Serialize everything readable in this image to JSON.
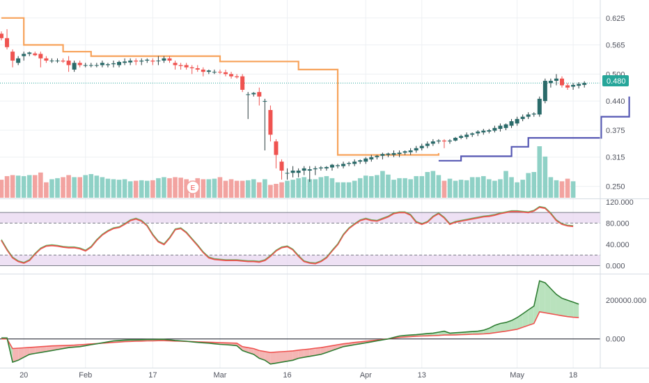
{
  "colors": {
    "up": "#26a69a",
    "up_body": "#2a6b6a",
    "down": "#ef5350",
    "vol_up": "#8fd1c6",
    "vol_down": "#f2a3a0",
    "stop_bear": "#f7a25a",
    "stop_bull": "#5557b3",
    "osc_band": "#e7d4ef",
    "pvt_green": "#4caf50",
    "pvt_fill_up": "#b9e2bd",
    "pvt_fill_down": "#f4b6b4",
    "last_price": "#26a69a",
    "grid": "#edf0f3",
    "axis_line": "#d6dce3"
  },
  "chart_data": [
    {
      "type": "candlestick",
      "title": "",
      "price_axis_ticks": [
        "0.625",
        "0.565",
        "0.500",
        "0.440",
        "0.375",
        "0.315",
        "0.250"
      ],
      "price_range": [
        0.223,
        0.665
      ],
      "last_price_label": "0.480",
      "earnings_marker": "E",
      "x_tick_labels": [
        {
          "label": "20",
          "bar": 4
        },
        {
          "label": "Feb",
          "bar": 15
        },
        {
          "label": "17",
          "bar": 27
        },
        {
          "label": "Mar",
          "bar": 39
        },
        {
          "label": "16",
          "bar": 51
        },
        {
          "label": "Apr",
          "bar": 65
        },
        {
          "label": "13",
          "bar": 75
        },
        {
          "label": "May",
          "bar": 92
        },
        {
          "label": "18",
          "bar": 102
        }
      ],
      "candles": [
        [
          0.59,
          0.595,
          0.575,
          0.58
        ],
        [
          0.58,
          0.6,
          0.555,
          0.56
        ],
        [
          0.55,
          0.555,
          0.515,
          0.53
        ],
        [
          0.525,
          0.54,
          0.52,
          0.535
        ],
        [
          0.54,
          0.55,
          0.53,
          0.545
        ],
        [
          0.545,
          0.55,
          0.54,
          0.548
        ],
        [
          0.546,
          0.55,
          0.54,
          0.542
        ],
        [
          0.545,
          0.55,
          0.515,
          0.535
        ],
        [
          0.535,
          0.54,
          0.525,
          0.53
        ],
        [
          0.53,
          0.535,
          0.525,
          0.53
        ],
        [
          0.53,
          0.535,
          0.525,
          0.53
        ],
        [
          0.53,
          0.535,
          0.525,
          0.528
        ],
        [
          0.53,
          0.54,
          0.505,
          0.52
        ],
        [
          0.51,
          0.53,
          0.505,
          0.525
        ],
        [
          0.525,
          0.53,
          0.515,
          0.52
        ],
        [
          0.52,
          0.525,
          0.515,
          0.52
        ],
        [
          0.52,
          0.525,
          0.515,
          0.52
        ],
        [
          0.52,
          0.525,
          0.515,
          0.52
        ],
        [
          0.52,
          0.53,
          0.515,
          0.525
        ],
        [
          0.52,
          0.525,
          0.515,
          0.522
        ],
        [
          0.522,
          0.53,
          0.515,
          0.524
        ],
        [
          0.52,
          0.53,
          0.515,
          0.527
        ],
        [
          0.525,
          0.535,
          0.52,
          0.528
        ],
        [
          0.526,
          0.535,
          0.52,
          0.53
        ],
        [
          0.53,
          0.535,
          0.52,
          0.528
        ],
        [
          0.528,
          0.535,
          0.52,
          0.53
        ],
        [
          0.53,
          0.535,
          0.525,
          0.532
        ],
        [
          0.53,
          0.535,
          0.52,
          0.528
        ],
        [
          0.53,
          0.54,
          0.52,
          0.53
        ],
        [
          0.53,
          0.54,
          0.525,
          0.535
        ],
        [
          0.535,
          0.54,
          0.525,
          0.53
        ],
        [
          0.525,
          0.53,
          0.51,
          0.52
        ],
        [
          0.52,
          0.525,
          0.51,
          0.518
        ],
        [
          0.52,
          0.525,
          0.51,
          0.515
        ],
        [
          0.515,
          0.52,
          0.5,
          0.513
        ],
        [
          0.513,
          0.52,
          0.505,
          0.51
        ],
        [
          0.51,
          0.515,
          0.495,
          0.505
        ],
        [
          0.505,
          0.51,
          0.5,
          0.508
        ],
        [
          0.505,
          0.51,
          0.5,
          0.505
        ],
        [
          0.505,
          0.51,
          0.5,
          0.504
        ],
        [
          0.504,
          0.51,
          0.495,
          0.5
        ],
        [
          0.5,
          0.505,
          0.49,
          0.495
        ],
        [
          0.495,
          0.5,
          0.49,
          0.493
        ],
        [
          0.495,
          0.5,
          0.46,
          0.465
        ],
        [
          0.455,
          0.46,
          0.4,
          0.455
        ],
        [
          0.455,
          0.46,
          0.45,
          0.458
        ],
        [
          0.46,
          0.47,
          0.43,
          0.45
        ],
        [
          0.44,
          0.445,
          0.33,
          0.44
        ],
        [
          0.42,
          0.43,
          0.35,
          0.365
        ],
        [
          0.35,
          0.355,
          0.29,
          0.32
        ],
        [
          0.305,
          0.31,
          0.265,
          0.285
        ],
        [
          0.28,
          0.29,
          0.265,
          0.28
        ],
        [
          0.28,
          0.295,
          0.27,
          0.285
        ],
        [
          0.28,
          0.29,
          0.27,
          0.285
        ],
        [
          0.285,
          0.295,
          0.275,
          0.29
        ],
        [
          0.285,
          0.295,
          0.26,
          0.288
        ],
        [
          0.288,
          0.295,
          0.275,
          0.29
        ],
        [
          0.29,
          0.295,
          0.285,
          0.292
        ],
        [
          0.29,
          0.295,
          0.285,
          0.293
        ],
        [
          0.292,
          0.3,
          0.285,
          0.298
        ],
        [
          0.295,
          0.3,
          0.29,
          0.297
        ],
        [
          0.295,
          0.305,
          0.29,
          0.3
        ],
        [
          0.3,
          0.305,
          0.295,
          0.302
        ],
        [
          0.3,
          0.31,
          0.295,
          0.305
        ],
        [
          0.305,
          0.31,
          0.3,
          0.308
        ],
        [
          0.305,
          0.315,
          0.3,
          0.312
        ],
        [
          0.31,
          0.32,
          0.305,
          0.315
        ],
        [
          0.315,
          0.32,
          0.31,
          0.318
        ],
        [
          0.318,
          0.325,
          0.31,
          0.322
        ],
        [
          0.32,
          0.325,
          0.315,
          0.323
        ],
        [
          0.32,
          0.33,
          0.315,
          0.324
        ],
        [
          0.322,
          0.33,
          0.315,
          0.325
        ],
        [
          0.325,
          0.33,
          0.32,
          0.328
        ],
        [
          0.326,
          0.335,
          0.32,
          0.33
        ],
        [
          0.33,
          0.34,
          0.325,
          0.335
        ],
        [
          0.335,
          0.345,
          0.33,
          0.34
        ],
        [
          0.34,
          0.35,
          0.335,
          0.345
        ],
        [
          0.345,
          0.355,
          0.34,
          0.35
        ],
        [
          0.35,
          0.355,
          0.345,
          0.352
        ],
        [
          0.352,
          0.355,
          0.335,
          0.35
        ],
        [
          0.35,
          0.355,
          0.345,
          0.352
        ],
        [
          0.352,
          0.36,
          0.35,
          0.358
        ],
        [
          0.358,
          0.365,
          0.355,
          0.362
        ],
        [
          0.36,
          0.37,
          0.355,
          0.365
        ],
        [
          0.365,
          0.37,
          0.36,
          0.368
        ],
        [
          0.368,
          0.375,
          0.362,
          0.372
        ],
        [
          0.37,
          0.378,
          0.365,
          0.374
        ],
        [
          0.372,
          0.378,
          0.368,
          0.375
        ],
        [
          0.374,
          0.385,
          0.37,
          0.38
        ],
        [
          0.378,
          0.39,
          0.372,
          0.385
        ],
        [
          0.38,
          0.39,
          0.375,
          0.388
        ],
        [
          0.385,
          0.4,
          0.38,
          0.395
        ],
        [
          0.39,
          0.405,
          0.385,
          0.4
        ],
        [
          0.4,
          0.41,
          0.395,
          0.405
        ],
        [
          0.405,
          0.415,
          0.4,
          0.41
        ],
        [
          0.41,
          0.415,
          0.405,
          0.412
        ],
        [
          0.41,
          0.45,
          0.405,
          0.445
        ],
        [
          0.44,
          0.49,
          0.435,
          0.485
        ],
        [
          0.48,
          0.49,
          0.47,
          0.485
        ],
        [
          0.485,
          0.5,
          0.475,
          0.49
        ],
        [
          0.49,
          0.495,
          0.47,
          0.475
        ],
        [
          0.475,
          0.48,
          0.465,
          0.47
        ],
        [
          0.472,
          0.48,
          0.465,
          0.476
        ],
        [
          0.474,
          0.482,
          0.468,
          0.478
        ],
        [
          0.476,
          0.484,
          0.47,
          0.48
        ]
      ],
      "volume": [
        0.35,
        0.42,
        0.44,
        0.43,
        0.42,
        0.44,
        0.44,
        0.49,
        0.3,
        0.36,
        0.38,
        0.4,
        0.44,
        0.4,
        0.4,
        0.44,
        0.46,
        0.43,
        0.4,
        0.37,
        0.36,
        0.35,
        0.36,
        0.32,
        0.33,
        0.34,
        0.33,
        0.34,
        0.38,
        0.4,
        0.38,
        0.4,
        0.39,
        0.36,
        0.33,
        0.38,
        0.36,
        0.36,
        0.37,
        0.4,
        0.33,
        0.36,
        0.33,
        0.33,
        0.34,
        0.36,
        0.3,
        0.36,
        0.25,
        0.27,
        0.3,
        0.33,
        0.35,
        0.38,
        0.4,
        0.36,
        0.36,
        0.4,
        0.42,
        0.38,
        0.3,
        0.3,
        0.3,
        0.33,
        0.38,
        0.43,
        0.42,
        0.44,
        0.52,
        0.45,
        0.35,
        0.38,
        0.38,
        0.36,
        0.42,
        0.42,
        0.5,
        0.52,
        0.44,
        0.33,
        0.37,
        0.33,
        0.35,
        0.34,
        0.4,
        0.4,
        0.42,
        0.36,
        0.33,
        0.36,
        0.52,
        0.4,
        0.3,
        0.35,
        0.48,
        0.5,
        1.0,
        0.8,
        0.4,
        0.34,
        0.32,
        0.37,
        0.32
      ],
      "stop_bear": [
        [
          0,
          0.625
        ],
        [
          4,
          0.625
        ],
        [
          4,
          0.565
        ],
        [
          11,
          0.565
        ],
        [
          11,
          0.55
        ],
        [
          16,
          0.55
        ],
        [
          16,
          0.54
        ],
        [
          39,
          0.54
        ],
        [
          39,
          0.528
        ],
        [
          53,
          0.528
        ],
        [
          53,
          0.51
        ],
        [
          60,
          0.51
        ],
        [
          60,
          0.32
        ],
        [
          78,
          0.32
        ],
        [
          78,
          0.324
        ]
      ],
      "stop_bull": [
        [
          78,
          0.307
        ],
        [
          82,
          0.307
        ],
        [
          82,
          0.317
        ],
        [
          91,
          0.317
        ],
        [
          91,
          0.338
        ],
        [
          94,
          0.338
        ],
        [
          94,
          0.358
        ],
        [
          107,
          0.358
        ],
        [
          107,
          0.405
        ],
        [
          112,
          0.405
        ],
        [
          112,
          0.45
        ]
      ]
    },
    {
      "type": "line",
      "title": "",
      "axis_ticks": [
        "120.000",
        "80.000",
        "40.000",
        "0.000"
      ],
      "range": [
        -15,
        125
      ],
      "band_upper": [
        80,
        100
      ],
      "band_lower": [
        0,
        20
      ],
      "series": [
        {
          "values": [
            48,
            30,
            15,
            8,
            5,
            10,
            22,
            32,
            37,
            38,
            37,
            35,
            34,
            34,
            32,
            28,
            35,
            48,
            58,
            65,
            70,
            72,
            78,
            85,
            88,
            84,
            75,
            58,
            45,
            40,
            52,
            68,
            70,
            62,
            50,
            38,
            25,
            15,
            12,
            11,
            10,
            10,
            10,
            9,
            8,
            8,
            7,
            10,
            18,
            28,
            34,
            36,
            30,
            18,
            8,
            5,
            4,
            8,
            15,
            28,
            40,
            58,
            70,
            78,
            85,
            88,
            85,
            84,
            88,
            92,
            98,
            100,
            100,
            95,
            82,
            78,
            82,
            92,
            98,
            90,
            78,
            82,
            84,
            86,
            88,
            90,
            92,
            93,
            95,
            98,
            100,
            102,
            102,
            101,
            100,
            103,
            110,
            108,
            98,
            85,
            78,
            75,
            74
          ]
        }
      ]
    },
    {
      "type": "area",
      "title": "",
      "axis_ticks": [
        "200000.000",
        "0.000"
      ],
      "range": [
        -145000,
        330000
      ],
      "series": [
        {
          "values": [
            5000,
            5000,
            -120000,
            -110000,
            -95000,
            -80000,
            -75000,
            -70000,
            -65000,
            -60000,
            -55000,
            -50000,
            -45000,
            -42000,
            -40000,
            -35000,
            -30000,
            -25000,
            -20000,
            -15000,
            -10000,
            -8000,
            -6000,
            -5000,
            -5000,
            -4000,
            -3000,
            -3000,
            -2000,
            -2000,
            -5000,
            -8000,
            -10000,
            -12000,
            -15000,
            -18000,
            -20000,
            -22000,
            -25000,
            -28000,
            -30000,
            -32000,
            -35000,
            -60000,
            -70000,
            -80000,
            -100000,
            -110000,
            -130000,
            -125000,
            -120000,
            -115000,
            -110000,
            -100000,
            -95000,
            -90000,
            -85000,
            -80000,
            -70000,
            -60000,
            -50000,
            -40000,
            -35000,
            -30000,
            -25000,
            -20000,
            -15000,
            -10000,
            -5000,
            0,
            8000,
            15000,
            18000,
            20000,
            22000,
            25000,
            28000,
            30000,
            35000,
            40000,
            30000,
            32000,
            34000,
            36000,
            38000,
            40000,
            45000,
            55000,
            70000,
            80000,
            85000,
            95000,
            110000,
            130000,
            150000,
            170000,
            300000,
            290000,
            260000,
            230000,
            210000,
            200000,
            190000,
            180000
          ]
        },
        {
          "values": [
            0,
            0,
            -50000,
            -48000,
            -46000,
            -44000,
            -42000,
            -40000,
            -38000,
            -36000,
            -35000,
            -34000,
            -33000,
            -32000,
            -30000,
            -28000,
            -26000,
            -24000,
            -22000,
            -20000,
            -18000,
            -16000,
            -14000,
            -13000,
            -12000,
            -11000,
            -10000,
            -10000,
            -9000,
            -9000,
            -10000,
            -11000,
            -12000,
            -13000,
            -14000,
            -15000,
            -16000,
            -17000,
            -18000,
            -19000,
            -20000,
            -21000,
            -22000,
            -40000,
            -45000,
            -50000,
            -60000,
            -65000,
            -70000,
            -68000,
            -66000,
            -64000,
            -62000,
            -58000,
            -55000,
            -52000,
            -48000,
            -45000,
            -40000,
            -35000,
            -30000,
            -25000,
            -22000,
            -18000,
            -15000,
            -12000,
            -9000,
            -6000,
            -3000,
            0,
            5000,
            8000,
            10000,
            12000,
            14000,
            15000,
            16000,
            17000,
            18000,
            20000,
            20000,
            21000,
            22000,
            23000,
            24000,
            25000,
            26000,
            28000,
            32000,
            36000,
            40000,
            45000,
            50000,
            60000,
            70000,
            80000,
            140000,
            135000,
            130000,
            125000,
            120000,
            115000,
            112000,
            110000
          ]
        }
      ]
    }
  ]
}
